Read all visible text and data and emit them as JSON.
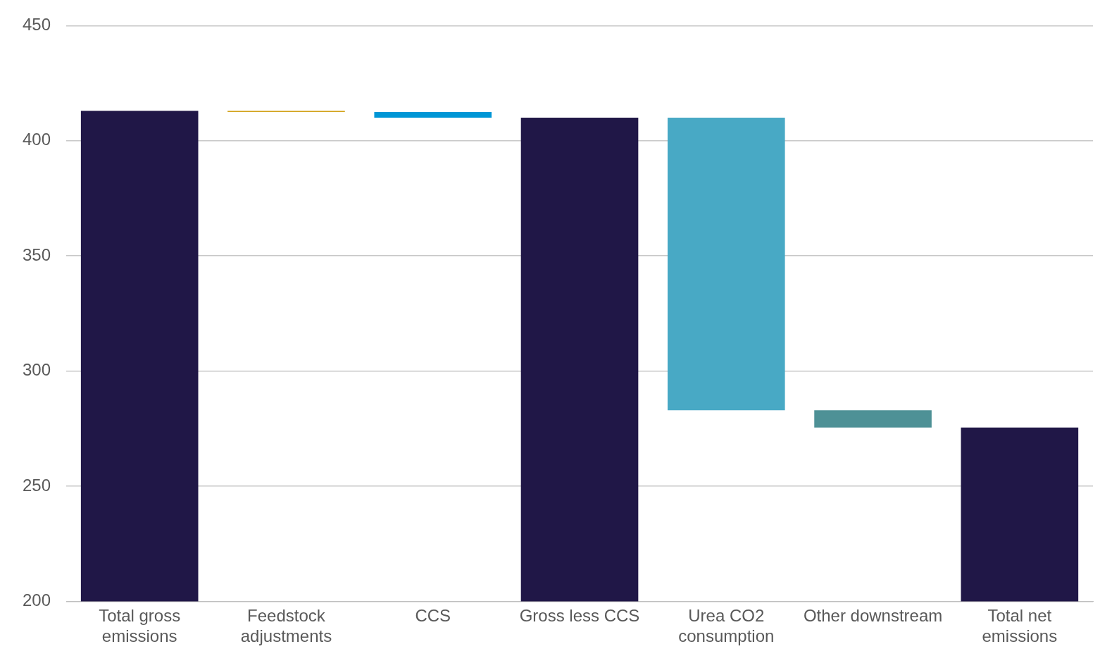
{
  "chart_data": {
    "type": "bar",
    "categories": [
      "Total gross emissions",
      "Feedstock adjustments",
      "CCS",
      "Gross less CCS",
      "Urea CO2 consumption",
      "Other downstream",
      "Total net emissions"
    ],
    "values": [
      413,
      -0.5,
      -2.5,
      410,
      -127,
      -7.5,
      275.5
    ],
    "base": [
      null,
      413,
      412.5,
      null,
      410,
      283,
      null
    ],
    "colors": [
      "#201747",
      "#d4a520",
      "#0096d6",
      "#201747",
      "#48a9c5",
      "#4e9196",
      "#201747"
    ],
    "ylim": [
      200,
      450
    ],
    "yticks": [
      200,
      250,
      300,
      350,
      400,
      450
    ],
    "grid": "y",
    "legend": false
  }
}
